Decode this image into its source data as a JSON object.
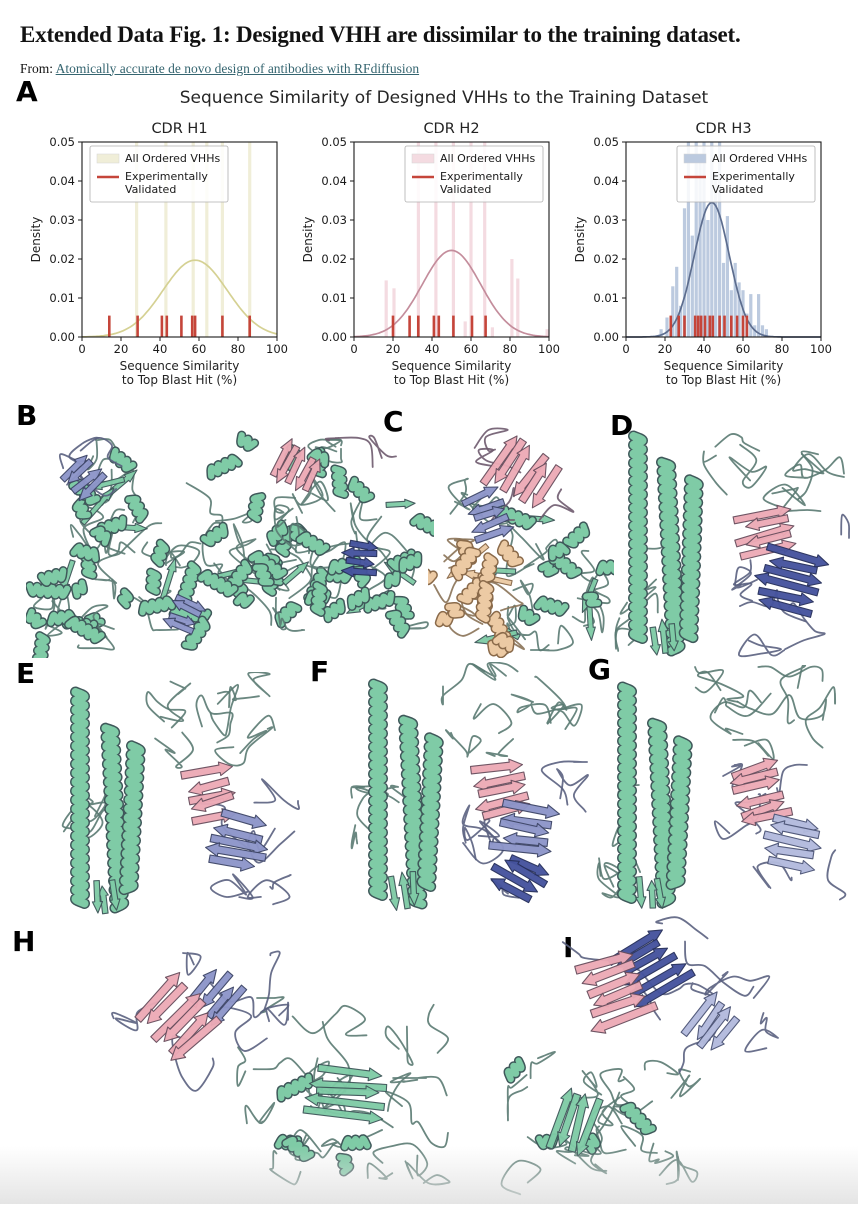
{
  "header": {
    "title": "Extended Data Fig. 1: Designed VHH are dissimilar to the training dataset.",
    "from_label": "From: ",
    "article_link": "Atomically accurate de novo design of antibodies with RFdiffusion"
  },
  "figure": {
    "panel_a": {
      "label": "A",
      "suptitle": "Sequence Similarity of Designed VHHs to the Training Dataset"
    },
    "panels": [
      {
        "label": "B",
        "alt": "Designed VHHs (purple, navy, pink) bound at multiple sites of a large green multi-domain target complex"
      },
      {
        "label": "C",
        "alt": "VHH (pink and purple) bound to a green target complex with a tan accessory subunit"
      },
      {
        "label": "D",
        "alt": "VHH beta-sandwich (pink and navy) engaging a green helical bundle target"
      },
      {
        "label": "E",
        "alt": "VHH (pink and purple) docked against a green coiled-coil target"
      },
      {
        "label": "F",
        "alt": "VHH (pink, purple and navy) docked against a green coiled-coil target"
      },
      {
        "label": "G",
        "alt": "VHH (pink and light purple) docked against a green coiled-coil target"
      },
      {
        "label": "H",
        "alt": "VHH (pink and purple) bound to a green beta-rich target domain"
      },
      {
        "label": "I",
        "alt": "VHH (pink and navy) atop a green mixed alpha-beta target domain"
      }
    ]
  },
  "structure_colors": {
    "target_green": "#7fcba6",
    "vhh_pink": "#edaab6",
    "vhh_purple": "#8d95c9",
    "vhh_navy": "#45539e",
    "vhh_lightpurple": "#b2badd",
    "accessory_tan": "#eccaa4"
  },
  "chart_data": [
    {
      "type": "histogram+kde+rug",
      "title": "CDR H1",
      "ylabel": "Density",
      "xlabel": [
        "Sequence Similarity",
        "to Top Blast Hit (%)"
      ],
      "xlim": [
        0,
        100
      ],
      "ylim": [
        0,
        0.05
      ],
      "xticks": [
        0,
        20,
        40,
        60,
        80,
        100
      ],
      "yticks": [
        0,
        0.01,
        0.02,
        0.03,
        0.04,
        0.05
      ],
      "legend": [
        "All Ordered VHHs",
        "Experimentally\nValidated"
      ],
      "legend_pos": "left",
      "colors": {
        "hist": "#f0eed8",
        "kde": "#d5d193",
        "rug": "#c5453a"
      },
      "hist": [
        {
          "x": 28,
          "h": 0.052
        },
        {
          "x": 43,
          "h": 0.052
        },
        {
          "x": 57,
          "h": 0.052
        },
        {
          "x": 64,
          "h": 0.052
        },
        {
          "x": 72,
          "h": 0.052
        },
        {
          "x": 86,
          "h": 0.052
        }
      ],
      "kde": {
        "mean": 58,
        "peak": 0.0197,
        "sigma": 16.5
      },
      "rug_x": [
        14,
        28.5,
        41,
        43.5,
        51,
        56.5,
        58,
        72,
        86
      ],
      "rug_h": 0.0055
    },
    {
      "type": "histogram+kde+rug",
      "title": "CDR H2",
      "ylabel": "Density",
      "xlabel": [
        "Sequence Similarity",
        "to Top Blast Hit (%)"
      ],
      "xlim": [
        0,
        100
      ],
      "ylim": [
        0,
        0.05
      ],
      "xticks": [
        0,
        20,
        40,
        60,
        80,
        100
      ],
      "yticks": [
        0,
        0.01,
        0.02,
        0.03,
        0.04,
        0.05
      ],
      "legend": [
        "All Ordered VHHs",
        "Experimentally\nValidated"
      ],
      "legend_pos": "right",
      "colors": {
        "hist": "#f4dbe1",
        "kde": "#c48d9c",
        "rug": "#c5453a"
      },
      "hist": [
        {
          "x": 16.5,
          "h": 0.0145
        },
        {
          "x": 20.5,
          "h": 0.0125
        },
        {
          "x": 33,
          "h": 0.052
        },
        {
          "x": 42,
          "h": 0.052
        },
        {
          "x": 51,
          "h": 0.052
        },
        {
          "x": 57,
          "h": 0.004
        },
        {
          "x": 60,
          "h": 0.052
        },
        {
          "x": 67,
          "h": 0.052
        },
        {
          "x": 71,
          "h": 0.0025
        },
        {
          "x": 81,
          "h": 0.02
        },
        {
          "x": 84,
          "h": 0.015
        },
        {
          "x": 99,
          "h": 0.002
        }
      ],
      "kde": {
        "mean": 50,
        "peak": 0.0222,
        "sigma": 15
      },
      "rug_x": [
        20,
        28.5,
        33,
        41,
        43.5,
        51,
        60.5,
        67.5
      ],
      "rug_h": 0.0055
    },
    {
      "type": "histogram+kde+rug",
      "title": "CDR H3",
      "ylabel": "Density",
      "xlabel": [
        "Sequence Similarity",
        "to Top Blast Hit (%)"
      ],
      "xlim": [
        0,
        100
      ],
      "ylim": [
        0,
        0.05
      ],
      "xticks": [
        0,
        20,
        40,
        60,
        80,
        100
      ],
      "yticks": [
        0,
        0.01,
        0.02,
        0.03,
        0.04,
        0.05
      ],
      "legend": [
        "All Ordered VHHs",
        "Experimentally\nValidated"
      ],
      "legend_pos": "right",
      "colors": {
        "hist": "#bccadf",
        "kde": "#5d6d8e",
        "rug": "#c5453a"
      },
      "hist": [
        {
          "x": 18,
          "h": 0.002
        },
        {
          "x": 21,
          "h": 0.005
        },
        {
          "x": 24,
          "h": 0.013
        },
        {
          "x": 26,
          "h": 0.018
        },
        {
          "x": 28,
          "h": 0.008
        },
        {
          "x": 30,
          "h": 0.033
        },
        {
          "x": 32,
          "h": 0.052
        },
        {
          "x": 34,
          "h": 0.026
        },
        {
          "x": 36,
          "h": 0.052
        },
        {
          "x": 38,
          "h": 0.046
        },
        {
          "x": 40,
          "h": 0.052
        },
        {
          "x": 42,
          "h": 0.03
        },
        {
          "x": 44,
          "h": 0.052
        },
        {
          "x": 46,
          "h": 0.042
        },
        {
          "x": 48,
          "h": 0.052
        },
        {
          "x": 50,
          "h": 0.019
        },
        {
          "x": 52,
          "h": 0.031
        },
        {
          "x": 54,
          "h": 0.012
        },
        {
          "x": 56,
          "h": 0.019
        },
        {
          "x": 58,
          "h": 0.014
        },
        {
          "x": 60,
          "h": 0.012
        },
        {
          "x": 62,
          "h": 0.006
        },
        {
          "x": 64,
          "h": 0.011
        },
        {
          "x": 66,
          "h": 0.003
        },
        {
          "x": 68,
          "h": 0.011
        },
        {
          "x": 70,
          "h": 0.003
        },
        {
          "x": 72,
          "h": 0.002
        }
      ],
      "kde": {
        "mean": 44,
        "peak": 0.0345,
        "sigma": 9
      },
      "rug_x": [
        23,
        27,
        30,
        35.5,
        37,
        38.5,
        40.5,
        43,
        44.5,
        48,
        50.5,
        54,
        57,
        60,
        62
      ],
      "rug_h": 0.0055
    }
  ]
}
